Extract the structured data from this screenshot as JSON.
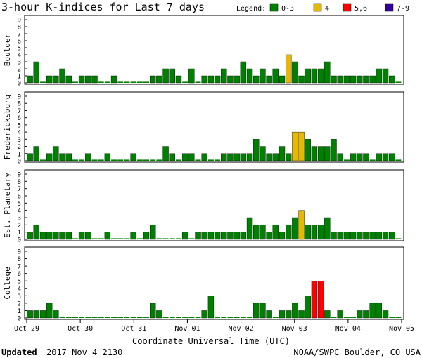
{
  "title": "3-hour K-indices for Last 7 days",
  "legend": {
    "label": "Legend:",
    "items": [
      {
        "label": "0-3",
        "color": "#008000"
      },
      {
        "label": "4",
        "color": "#e6b800"
      },
      {
        "label": "5,6",
        "color": "#ff0000"
      },
      {
        "label": "7-9",
        "color": "#330099"
      }
    ]
  },
  "footer": {
    "updated_label": "Updated",
    "updated_value": "2017 Nov  4 2130",
    "source": "NOAA/SWPC Boulder, CO USA"
  },
  "chart_data": [
    {
      "type": "bar",
      "name": "Boulder",
      "ylim": [
        0,
        9
      ],
      "yticks": [
        0,
        1,
        2,
        3,
        4,
        5,
        6,
        7,
        8,
        9
      ],
      "values": [
        1,
        3,
        0,
        1,
        1,
        2,
        1,
        0,
        1,
        1,
        1,
        0,
        0,
        1,
        0,
        0,
        0,
        0,
        0,
        1,
        1,
        2,
        2,
        1,
        0,
        2,
        0,
        1,
        1,
        1,
        2,
        1,
        1,
        3,
        2,
        1,
        2,
        1,
        2,
        1,
        4,
        3,
        1,
        2,
        2,
        2,
        3,
        1,
        1,
        1,
        1,
        1,
        1,
        1,
        2,
        2,
        1,
        0
      ]
    },
    {
      "type": "bar",
      "name": "Fredericksburg",
      "ylim": [
        0,
        9
      ],
      "yticks": [
        0,
        1,
        2,
        3,
        4,
        5,
        6,
        7,
        8,
        9
      ],
      "values": [
        1,
        2,
        0,
        1,
        2,
        1,
        1,
        0,
        0,
        1,
        0,
        0,
        1,
        0,
        0,
        0,
        1,
        0,
        0,
        0,
        0,
        2,
        1,
        0,
        1,
        1,
        0,
        1,
        0,
        0,
        1,
        1,
        1,
        1,
        1,
        3,
        2,
        1,
        1,
        2,
        1,
        4,
        4,
        3,
        2,
        2,
        2,
        3,
        1,
        0,
        1,
        1,
        1,
        0,
        1,
        1,
        1,
        0
      ]
    },
    {
      "type": "bar",
      "name": "Est. Planetary",
      "ylim": [
        0,
        9
      ],
      "yticks": [
        0,
        1,
        2,
        3,
        4,
        5,
        6,
        7,
        8,
        9
      ],
      "values": [
        1,
        2,
        1,
        1,
        1,
        1,
        1,
        0,
        1,
        1,
        0,
        0,
        1,
        0,
        0,
        0,
        1,
        0,
        1,
        2,
        0,
        0,
        0,
        0,
        1,
        0,
        1,
        1,
        1,
        1,
        1,
        1,
        1,
        1,
        3,
        2,
        2,
        1,
        2,
        1,
        2,
        3,
        4,
        2,
        2,
        2,
        3,
        1,
        1,
        1,
        1,
        1,
        1,
        1,
        1,
        1,
        1,
        0
      ]
    },
    {
      "type": "bar",
      "name": "College",
      "ylim": [
        0,
        9
      ],
      "yticks": [
        0,
        1,
        2,
        3,
        4,
        5,
        6,
        7,
        8,
        9
      ],
      "values": [
        1,
        1,
        1,
        2,
        1,
        0,
        0,
        0,
        0,
        0,
        0,
        0,
        0,
        0,
        0,
        0,
        0,
        0,
        0,
        2,
        1,
        0,
        0,
        0,
        0,
        0,
        0,
        1,
        3,
        0,
        0,
        0,
        0,
        0,
        0,
        2,
        2,
        1,
        0,
        1,
        1,
        2,
        1,
        3,
        5,
        5,
        1,
        0,
        1,
        0,
        0,
        1,
        1,
        2,
        2,
        1,
        0,
        0
      ]
    }
  ],
  "x_axis": {
    "label": "Coordinate Universal Time (UTC)",
    "ticks": [
      "Oct 29",
      "Oct 30",
      "Oct 31",
      "Nov 01",
      "Nov 02",
      "Nov 03",
      "Nov 04",
      "Nov 05"
    ]
  }
}
